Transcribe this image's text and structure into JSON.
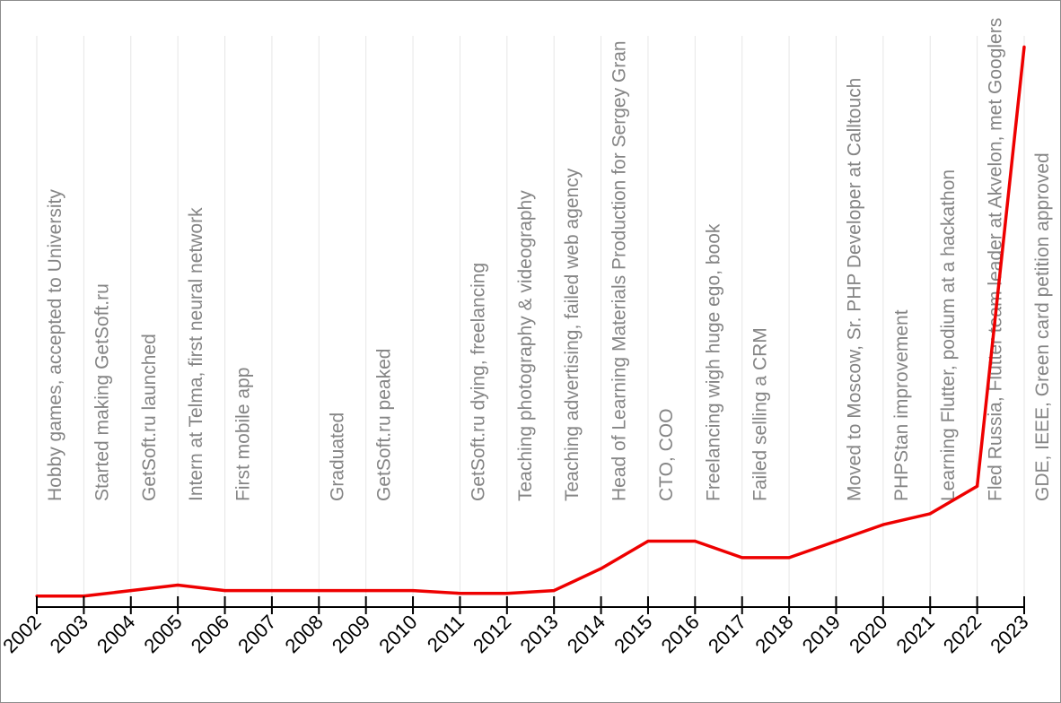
{
  "chart_data": {
    "type": "line",
    "title": "",
    "xlabel": "",
    "ylabel": "",
    "x": [
      2002,
      2003,
      2004,
      2005,
      2006,
      2007,
      2008,
      2009,
      2010,
      2011,
      2012,
      2013,
      2014,
      2015,
      2016,
      2017,
      2018,
      2019,
      2020,
      2021,
      2022,
      2023
    ],
    "tick_labels": [
      "2002",
      "2003",
      "2004",
      "2005",
      "2006",
      "2007",
      "2008",
      "2009",
      "2010",
      "2011",
      "2012",
      "2013",
      "2014",
      "2015",
      "2016",
      "2017",
      "2018",
      "2019",
      "2020",
      "2021",
      "2022",
      "2023"
    ],
    "series": [
      {
        "name": "",
        "color": "#ee0000",
        "values": [
          1.0,
          1.0,
          2.0,
          3.0,
          2.0,
          2.0,
          2.0,
          2.0,
          2.0,
          1.5,
          1.5,
          2.0,
          6.0,
          11.0,
          11.0,
          8.0,
          8.0,
          11.0,
          14.0,
          16.0,
          21.0,
          101.0
        ]
      }
    ],
    "ylim": [
      -1,
      103
    ],
    "grid": {
      "vertical": true,
      "horizontal": false,
      "color": "#e6e6e6"
    },
    "legend": "none",
    "annotations": [
      {
        "x": 2002,
        "text": "Hobby games, accepted to University"
      },
      {
        "x": 2003,
        "text": "Started making GetSoft.ru"
      },
      {
        "x": 2004,
        "text": "GetSoft.ru launched"
      },
      {
        "x": 2005,
        "text": "Intern at Telma, first neural network"
      },
      {
        "x": 2006,
        "text": "First mobile app"
      },
      {
        "x": 2008,
        "text": "Graduated"
      },
      {
        "x": 2009,
        "text": "GetSoft.ru peaked"
      },
      {
        "x": 2011,
        "text": "GetSoft.ru dying, freelancing"
      },
      {
        "x": 2012,
        "text": "Teaching photography & videography"
      },
      {
        "x": 2013,
        "text": "Teaching advertising, failed web agency"
      },
      {
        "x": 2014,
        "text": "Head of Learning Materials Production for Sergey Gran"
      },
      {
        "x": 2015,
        "text": "CTO, COO"
      },
      {
        "x": 2016,
        "text": "Freelancing wigh huge ego, book"
      },
      {
        "x": 2017,
        "text": "Failed selling a CRM"
      },
      {
        "x": 2019,
        "text": "Moved to Moscow, Sr. PHP Developer at Calltouch"
      },
      {
        "x": 2020,
        "text": "PHPStan improvement"
      },
      {
        "x": 2021,
        "text": "Learning Flutter, podium at a hackathon"
      },
      {
        "x": 2022,
        "text": "Fled Russia, Flutter team leader at Akvelon, met Googlers"
      },
      {
        "x": 2023,
        "text": "GDE, IEEE, Green card petition approved"
      }
    ]
  }
}
